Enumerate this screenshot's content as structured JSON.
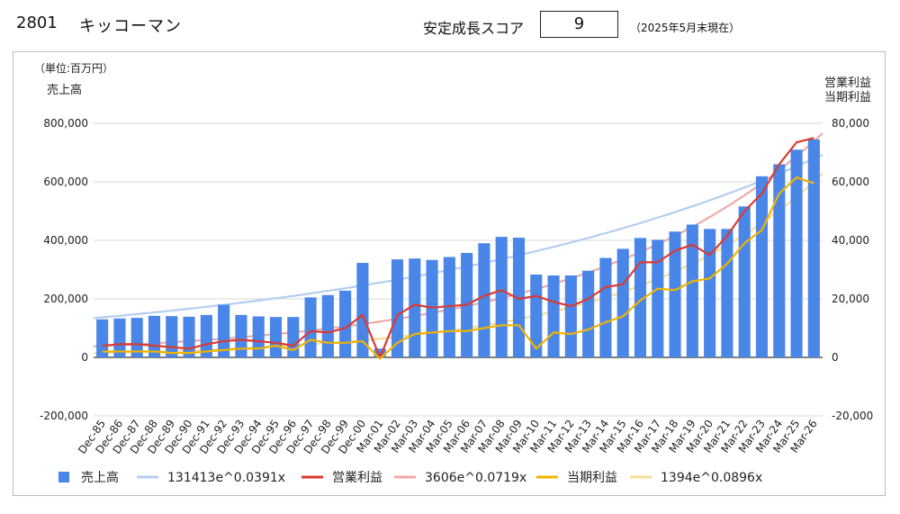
{
  "header": {
    "code": "2801",
    "name": "キッコーマン",
    "score_label": "安定成長スコア",
    "score_value": "9",
    "as_of": "（2025年5月末現在）"
  },
  "axes": {
    "unit": "（単位:百万円）",
    "left_title": "売上高",
    "right_title_line1": "営業利益",
    "right_title_line2": "当期利益",
    "left_ticks": [
      "800,000",
      "600,000",
      "400,000",
      "200,000",
      "0",
      "-200,000"
    ],
    "right_ticks": [
      "80,000",
      "60,000",
      "40,000",
      "20,000",
      "0",
      "-20,000"
    ]
  },
  "colors": {
    "bar": "#4a86e8",
    "sales_trend": "#b4cef0",
    "op": "#db3a2f",
    "op_trend": "#eeaaa6",
    "net": "#f2b300",
    "net_trend": "#f8de93"
  },
  "legend": {
    "sales": "売上高",
    "sales_trend": "131413e^0.0391x",
    "op": "営業利益",
    "op_trend": "3606e^0.0719x",
    "net": "当期利益",
    "net_trend": "1394e^0.0896x"
  },
  "chart_data": {
    "type": "bar",
    "categories": [
      "Dec-85",
      "Dec-86",
      "Dec-87",
      "Dec-88",
      "Dec-89",
      "Dec-90",
      "Dec-91",
      "Dec-92",
      "Dec-93",
      "Dec-94",
      "Dec-95",
      "Dec-96",
      "Dec-97",
      "Dec-98",
      "Dec-99",
      "Dec-00",
      "Mar-01",
      "Mar-02",
      "Mar-03",
      "Mar-04",
      "Mar-05",
      "Mar-06",
      "Mar-07",
      "Mar-08",
      "Mar-09",
      "Mar-10",
      "Mar-11",
      "Mar-12",
      "Mar-13",
      "Mar-14",
      "Mar-15",
      "Mar-16",
      "Mar-17",
      "Mar-18",
      "Mar-19",
      "Mar-20",
      "Mar-21",
      "Mar-22",
      "Mar-23",
      "Mar-24",
      "Mar-25",
      "Mar-26"
    ],
    "series": [
      {
        "name": "売上高",
        "type": "bar",
        "axis": "left",
        "values": [
          130000,
          133000,
          135000,
          142000,
          141000,
          139000,
          145000,
          180000,
          145000,
          140000,
          138000,
          138000,
          205000,
          213000,
          228000,
          323000,
          30000,
          335000,
          338000,
          333000,
          343000,
          357000,
          390000,
          412000,
          409000,
          283000,
          280000,
          280000,
          296000,
          340000,
          371000,
          408000,
          402000,
          430000,
          454000,
          439000,
          439000,
          516000,
          619000,
          660000,
          710000,
          745000
        ]
      },
      {
        "name": "営業利益",
        "type": "line",
        "axis": "right",
        "values": [
          4000,
          4500,
          4500,
          4000,
          3500,
          3000,
          4500,
          5500,
          6000,
          5500,
          5000,
          4000,
          9000,
          8500,
          10000,
          14500,
          0,
          14500,
          18000,
          17000,
          17500,
          18000,
          21000,
          23000,
          20000,
          21000,
          19000,
          17500,
          20000,
          24000,
          25000,
          32500,
          32500,
          36500,
          38500,
          35000,
          41500,
          50000,
          56000,
          66000,
          73500,
          75000
        ]
      },
      {
        "name": "当期利益",
        "type": "line",
        "axis": "right",
        "values": [
          2000,
          2000,
          2000,
          2000,
          1500,
          1500,
          2000,
          2500,
          3000,
          3000,
          4000,
          2500,
          6000,
          5000,
          5000,
          5500,
          -500,
          5000,
          8000,
          8500,
          9000,
          9000,
          10000,
          11000,
          11000,
          3000,
          8500,
          8000,
          9500,
          12000,
          14000,
          19500,
          23500,
          23000,
          26000,
          27000,
          32000,
          39000,
          43500,
          56000,
          61500,
          59500
        ]
      }
    ],
    "trendlines": [
      {
        "name": "131413e^0.0391x",
        "axis": "left",
        "a": 131413,
        "b": 0.0391
      },
      {
        "name": "3606e^0.0719x",
        "axis": "right",
        "a": 3606,
        "b": 0.0719
      },
      {
        "name": "1394e^0.0896x",
        "axis": "right",
        "a": 1394,
        "b": 0.0896
      }
    ],
    "ylabel": "売上高",
    "y2label": "営業利益 当期利益",
    "ylim": [
      -200000,
      800000
    ],
    "y2lim": [
      -20000,
      80000
    ],
    "grid": true,
    "legend_position": "bottom"
  }
}
